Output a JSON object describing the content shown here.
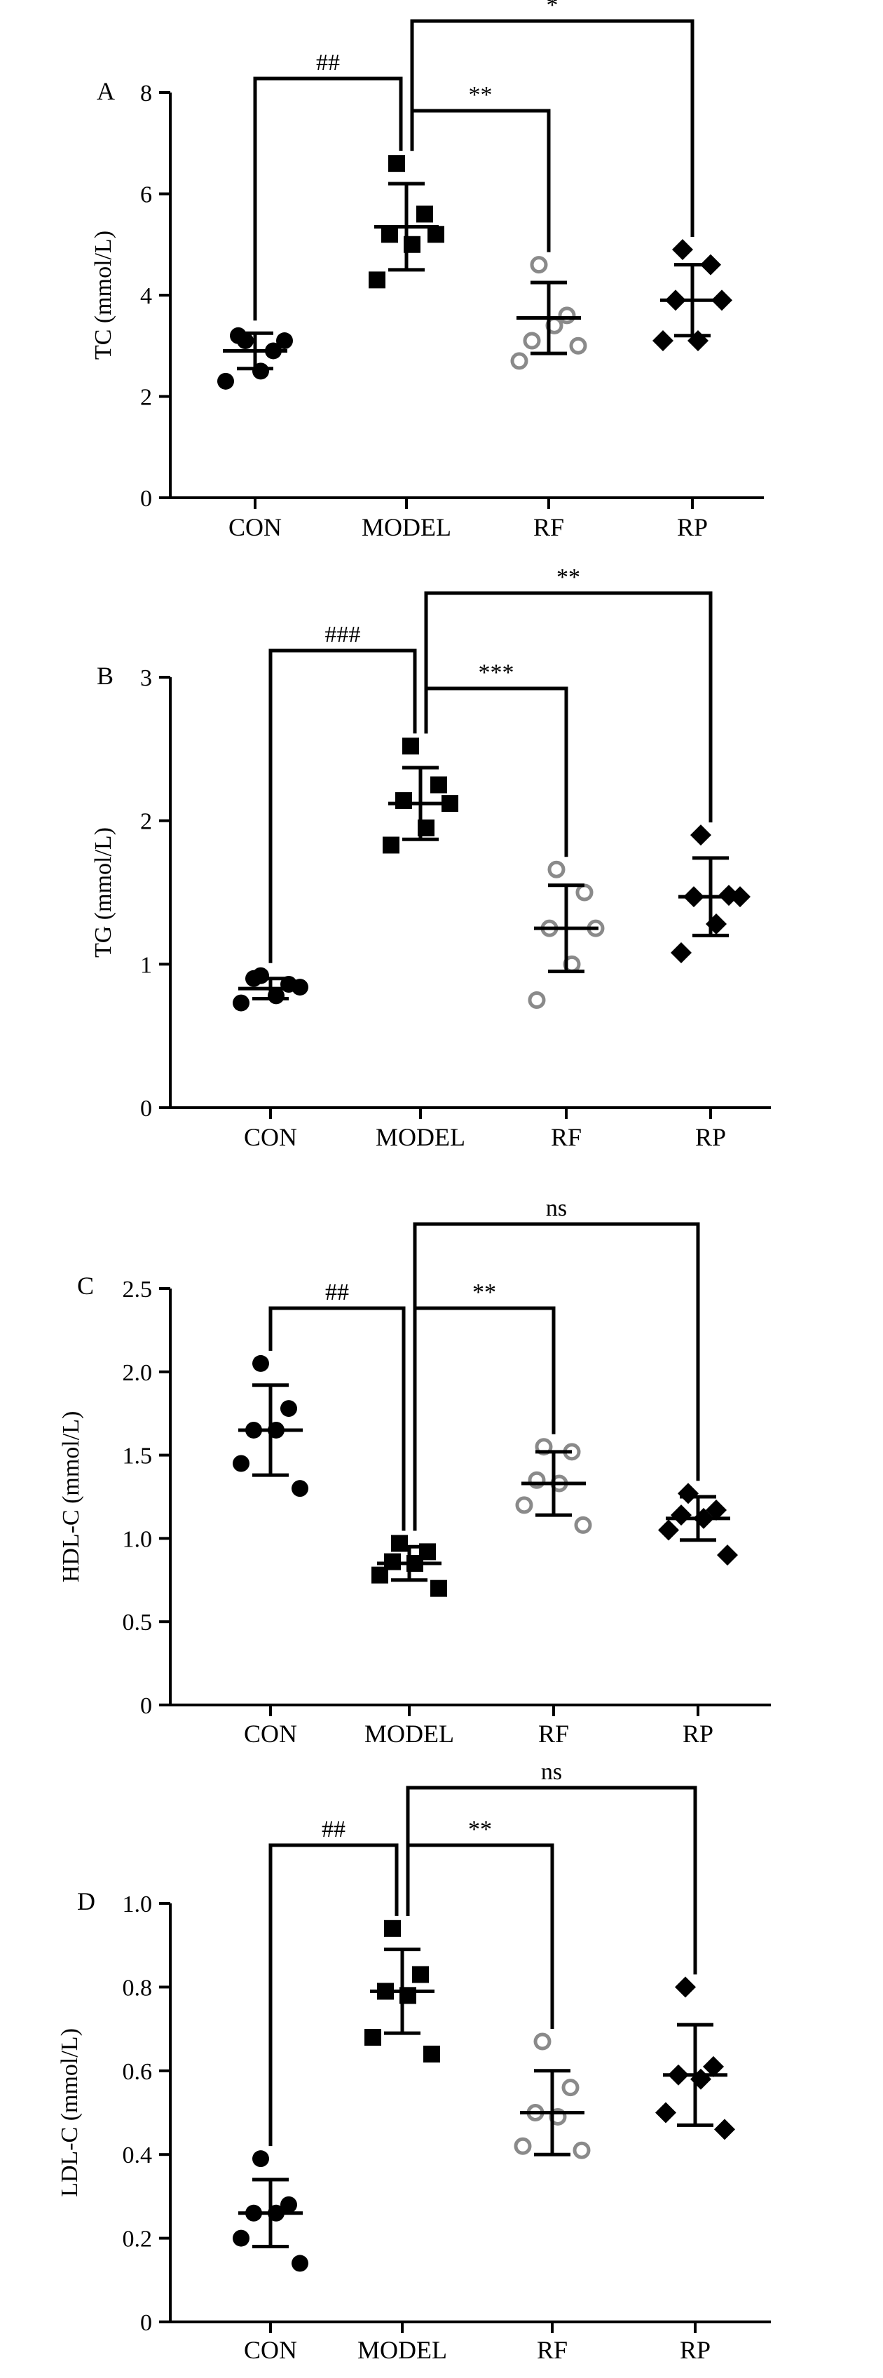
{
  "figure": {
    "background": "#ffffff"
  },
  "chart_data": [
    {
      "panel": "A",
      "type": "scatter",
      "ylabel": "TC (mmol/L)",
      "ylim": [
        0,
        8
      ],
      "yticks": [
        0,
        2,
        4,
        6,
        8
      ],
      "categories": [
        "CON",
        "MODEL",
        "RF",
        "RP"
      ],
      "groups": [
        {
          "name": "CON",
          "marker": "circle",
          "color": "#000000",
          "mean": 2.9,
          "sd": 0.35,
          "points": [
            3.1,
            2.9,
            3.2,
            2.5,
            2.3,
            3.1
          ]
        },
        {
          "name": "MODEL",
          "marker": "square",
          "color": "#000000",
          "mean": 5.35,
          "sd": 0.85,
          "points": [
            6.6,
            5.6,
            5.2,
            5.0,
            4.3,
            5.2
          ]
        },
        {
          "name": "RF",
          "marker": "circle-open",
          "color": "#8a8a8a",
          "mean": 3.55,
          "sd": 0.7,
          "points": [
            4.6,
            3.6,
            3.1,
            3.4,
            2.7,
            3.0
          ]
        },
        {
          "name": "RP",
          "marker": "diamond",
          "color": "#000000",
          "mean": 3.9,
          "sd": 0.7,
          "points": [
            4.9,
            4.6,
            3.9,
            3.1,
            3.1,
            3.9
          ]
        }
      ],
      "significance": [
        {
          "from": "CON",
          "to": "MODEL",
          "label": "##",
          "tier": 1
        },
        {
          "from": "MODEL",
          "to": "RF",
          "label": "**",
          "tier": 2
        },
        {
          "from": "MODEL",
          "to": "RP",
          "label": "*",
          "tier": 3
        }
      ]
    },
    {
      "panel": "B",
      "type": "scatter",
      "ylabel": "TG (mmol/L)",
      "ylim": [
        0,
        3
      ],
      "yticks": [
        0,
        1,
        2,
        3
      ],
      "categories": [
        "CON",
        "MODEL",
        "RF",
        "RP"
      ],
      "groups": [
        {
          "name": "CON",
          "marker": "circle",
          "color": "#000000",
          "mean": 0.83,
          "sd": 0.07,
          "points": [
            0.92,
            0.86,
            0.9,
            0.78,
            0.73,
            0.84
          ]
        },
        {
          "name": "MODEL",
          "marker": "square",
          "color": "#000000",
          "mean": 2.12,
          "sd": 0.25,
          "points": [
            2.52,
            2.25,
            2.14,
            1.95,
            1.83,
            2.12
          ]
        },
        {
          "name": "RF",
          "marker": "circle-open",
          "color": "#8a8a8a",
          "mean": 1.25,
          "sd": 0.3,
          "points": [
            1.66,
            1.5,
            1.25,
            1.0,
            0.75,
            1.25
          ]
        },
        {
          "name": "RP",
          "marker": "diamond",
          "color": "#000000",
          "mean": 1.47,
          "sd": 0.27,
          "points": [
            1.9,
            1.48,
            1.47,
            1.28,
            1.08,
            1.47
          ]
        }
      ],
      "significance": [
        {
          "from": "CON",
          "to": "MODEL",
          "label": "###",
          "tier": 1
        },
        {
          "from": "MODEL",
          "to": "RF",
          "label": "***",
          "tier": 2
        },
        {
          "from": "MODEL",
          "to": "RP",
          "label": "**",
          "tier": 3
        }
      ]
    },
    {
      "panel": "C",
      "type": "scatter",
      "ylabel": "HDL-C (mmol/L)",
      "ylim": [
        0,
        2.5
      ],
      "yticks": [
        0,
        0.5,
        1.0,
        1.5,
        2.0,
        2.5
      ],
      "ytick_labels": [
        "0",
        "0.5",
        "1.0",
        "1.5",
        "2.0",
        "2.5"
      ],
      "categories": [
        "CON",
        "MODEL",
        "RF",
        "RP"
      ],
      "groups": [
        {
          "name": "CON",
          "marker": "circle",
          "color": "#000000",
          "mean": 1.65,
          "sd": 0.27,
          "points": [
            2.05,
            1.78,
            1.65,
            1.65,
            1.45,
            1.3
          ]
        },
        {
          "name": "MODEL",
          "marker": "square",
          "color": "#000000",
          "mean": 0.85,
          "sd": 0.1,
          "points": [
            0.97,
            0.92,
            0.86,
            0.85,
            0.78,
            0.7
          ]
        },
        {
          "name": "RF",
          "marker": "circle-open",
          "color": "#8a8a8a",
          "mean": 1.33,
          "sd": 0.19,
          "points": [
            1.55,
            1.52,
            1.35,
            1.33,
            1.2,
            1.08
          ]
        },
        {
          "name": "RP",
          "marker": "diamond",
          "color": "#000000",
          "mean": 1.12,
          "sd": 0.13,
          "points": [
            1.27,
            1.17,
            1.14,
            1.12,
            1.05,
            0.9
          ]
        }
      ],
      "significance": [
        {
          "from": "CON",
          "to": "MODEL",
          "label": "##",
          "tier": 1
        },
        {
          "from": "MODEL",
          "to": "RF",
          "label": "**",
          "tier": 1
        },
        {
          "from": "MODEL",
          "to": "RP",
          "label": "ns",
          "tier": 3
        }
      ]
    },
    {
      "panel": "D",
      "type": "scatter",
      "ylabel": "LDL-C (mmol/L)",
      "ylim": [
        0,
        1.0
      ],
      "yticks": [
        0,
        0.2,
        0.4,
        0.6,
        0.8,
        1.0
      ],
      "ytick_labels": [
        "0",
        "0.2",
        "0.4",
        "0.6",
        "0.8",
        "1.0"
      ],
      "categories": [
        "CON",
        "MODEL",
        "RF",
        "RP"
      ],
      "groups": [
        {
          "name": "CON",
          "marker": "circle",
          "color": "#000000",
          "mean": 0.26,
          "sd": 0.08,
          "points": [
            0.39,
            0.28,
            0.26,
            0.26,
            0.2,
            0.14
          ]
        },
        {
          "name": "MODEL",
          "marker": "square",
          "color": "#000000",
          "mean": 0.79,
          "sd": 0.1,
          "points": [
            0.94,
            0.83,
            0.79,
            0.78,
            0.68,
            0.64
          ]
        },
        {
          "name": "RF",
          "marker": "circle-open",
          "color": "#8a8a8a",
          "mean": 0.5,
          "sd": 0.1,
          "points": [
            0.67,
            0.56,
            0.5,
            0.49,
            0.42,
            0.41
          ]
        },
        {
          "name": "RP",
          "marker": "diamond",
          "color": "#000000",
          "mean": 0.59,
          "sd": 0.12,
          "points": [
            0.8,
            0.61,
            0.59,
            0.58,
            0.5,
            0.46
          ]
        }
      ],
      "significance": [
        {
          "from": "CON",
          "to": "MODEL",
          "label": "##",
          "tier": 1
        },
        {
          "from": "MODEL",
          "to": "RF",
          "label": "**",
          "tier": 1
        },
        {
          "from": "MODEL",
          "to": "RP",
          "label": "ns",
          "tier": 3
        }
      ]
    }
  ]
}
